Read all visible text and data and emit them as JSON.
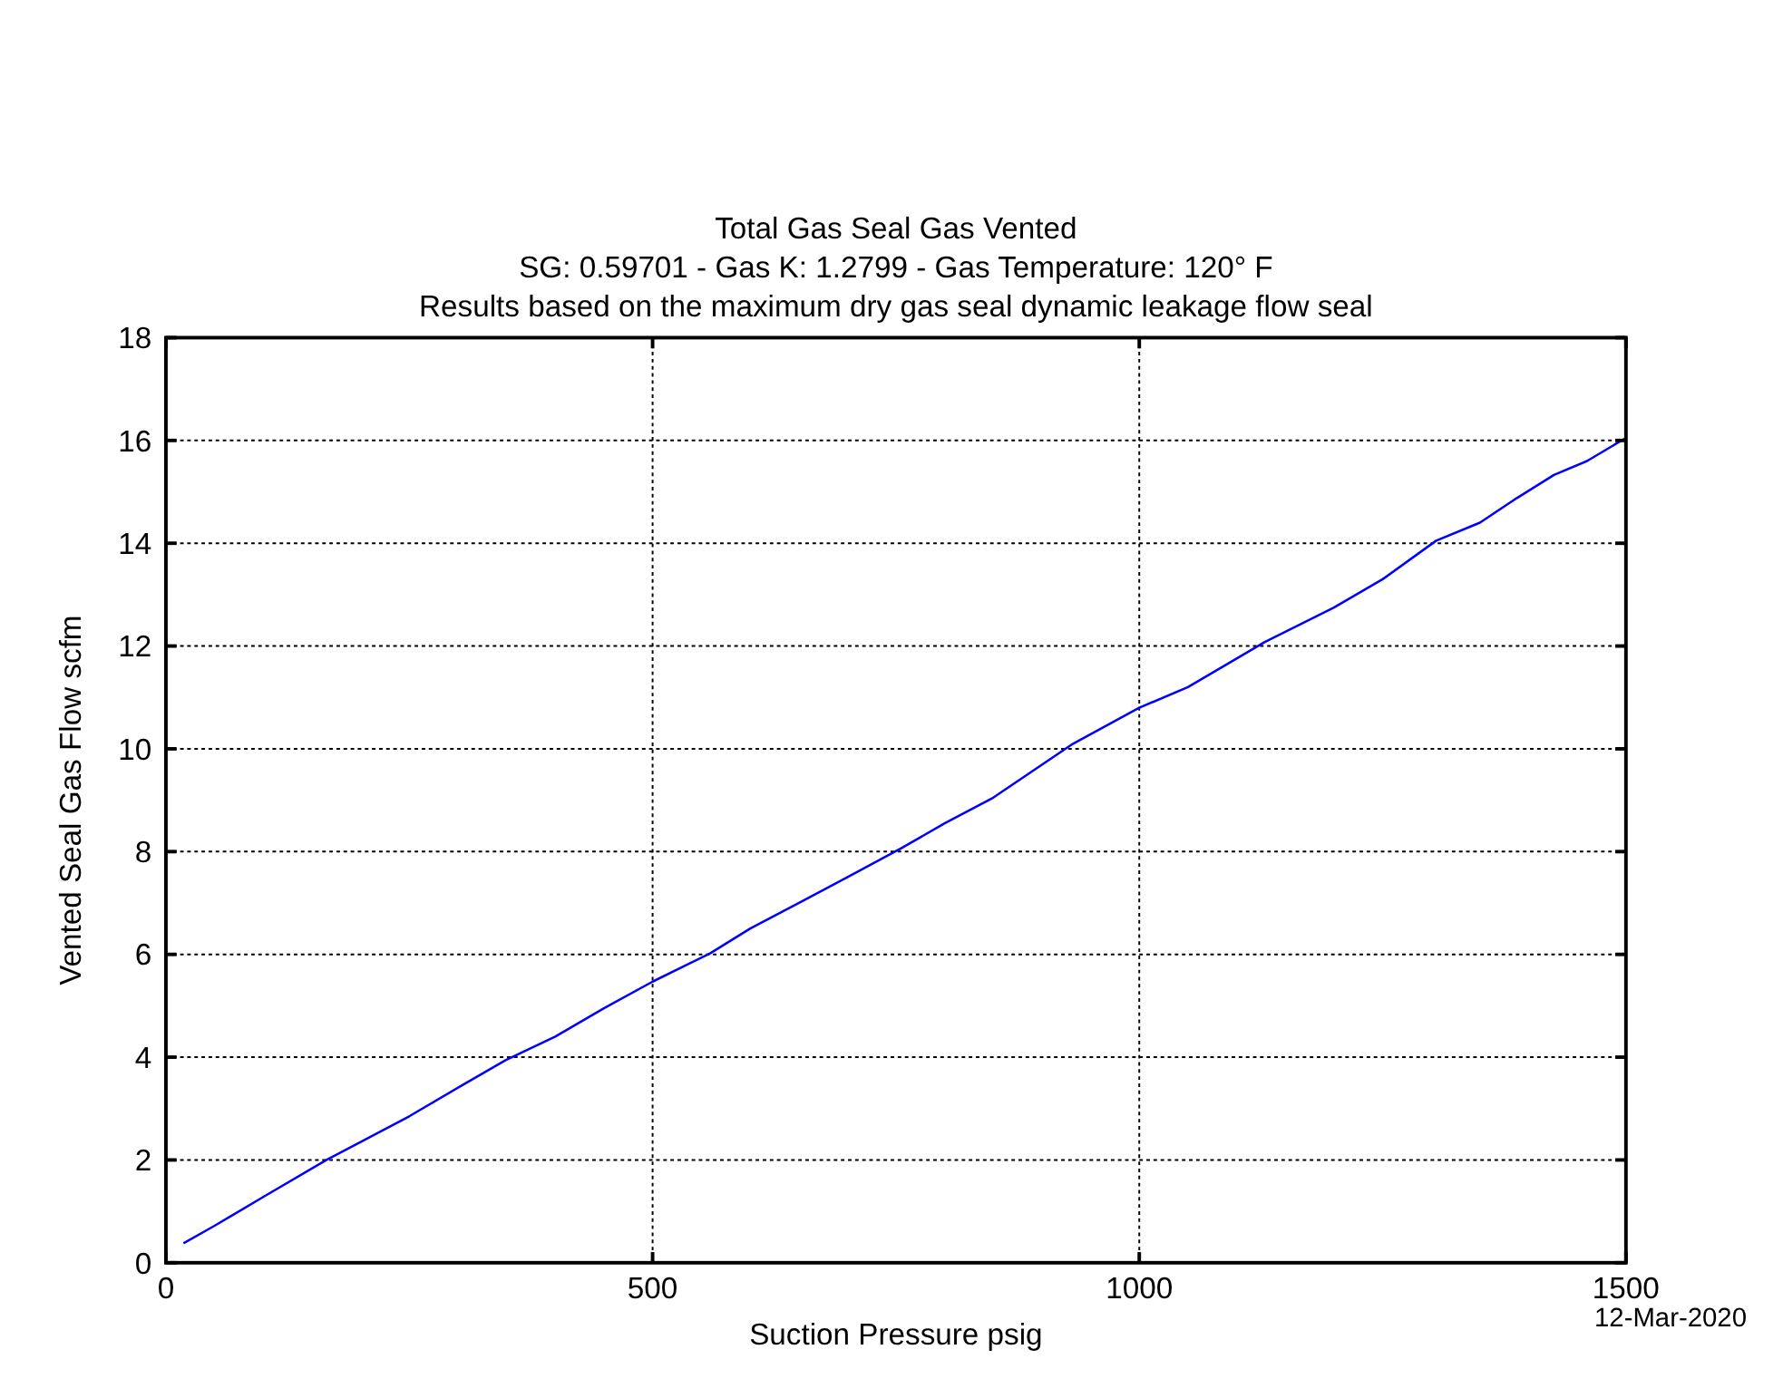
{
  "chart_data": {
    "type": "line",
    "title": "Total Gas Seal Gas Vented",
    "subtitle": "SG: 0.59701 - Gas K: 1.2799 - Gas Temperature: 120° F\nResults based on the maximum dry gas seal dynamic leakage flow seal",
    "xlabel": "Suction Pressure psig",
    "ylabel": "Vented Seal Gas Flow scfm",
    "annotations": [
      "12-Mar-2020"
    ],
    "xlim": [
      0,
      1500
    ],
    "xticks": [
      0,
      500,
      1000,
      1500
    ],
    "ylim": [
      0,
      18
    ],
    "yticks": [
      0,
      2,
      4,
      6,
      8,
      10,
      12,
      14,
      16,
      18
    ],
    "grid": true,
    "series": [
      {
        "color": "#0000ff",
        "x": [
          18,
          50,
          100,
          165,
          200,
          250,
          305,
          349,
          400,
          450,
          500,
          559,
          600,
          650,
          700,
          755,
          800,
          850,
          932,
          1000,
          1050,
          1129,
          1200,
          1250,
          1305,
          1350,
          1388,
          1426,
          1460,
          1500
        ],
        "values": [
          0.38,
          0.72,
          1.28,
          2.0,
          2.35,
          2.85,
          3.46,
          3.94,
          4.4,
          4.95,
          5.47,
          6.02,
          6.5,
          7.0,
          7.5,
          8.06,
          8.55,
          9.05,
          10.1,
          10.8,
          11.2,
          12.08,
          12.75,
          13.3,
          14.05,
          14.4,
          14.88,
          15.33,
          15.6,
          16.05
        ]
      }
    ]
  }
}
